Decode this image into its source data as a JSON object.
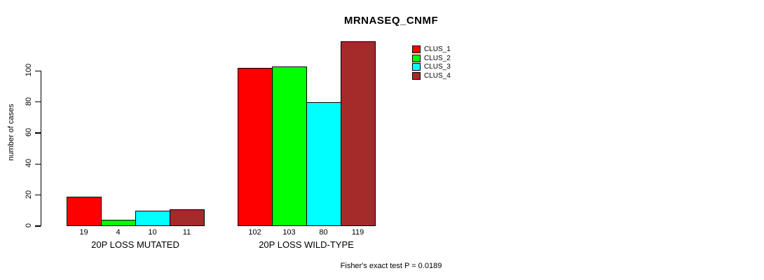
{
  "chart_data": {
    "type": "bar",
    "title": "MRNASEQ_CNMF",
    "ylabel": "number of cases",
    "xlabel": "",
    "yticks": [
      0,
      20,
      40,
      60,
      80,
      100
    ],
    "ylim": [
      0,
      120
    ],
    "grid": false,
    "legend_position": "top-right",
    "categories": [
      "20P LOSS MUTATED",
      "20P LOSS WILD-TYPE"
    ],
    "series": [
      {
        "name": "CLUS_1",
        "color": "#FF0000",
        "values": [
          19,
          102
        ]
      },
      {
        "name": "CLUS_2",
        "color": "#00FF00",
        "values": [
          4,
          103
        ]
      },
      {
        "name": "CLUS_3",
        "color": "#00FFFF",
        "values": [
          10,
          80
        ]
      },
      {
        "name": "CLUS_4",
        "color": "#A52A2A",
        "values": [
          11,
          119
        ]
      }
    ],
    "groups": [
      {
        "label": "20P LOSS MUTATED",
        "values": [
          19,
          4,
          10,
          11
        ]
      },
      {
        "label": "20P LOSS WILD-TYPE",
        "values": [
          102,
          103,
          80,
          119
        ]
      }
    ],
    "bar_value_labels": [
      [
        "19",
        "4",
        "10",
        "11"
      ],
      [
        "102",
        "103",
        "80",
        "119"
      ]
    ],
    "annotation": "Fisher's exact test P = 0.0189"
  },
  "colors": {
    "clus_1": "#FF0000",
    "clus_2": "#00FF00",
    "clus_3": "#00FFFF",
    "clus_4": "#A52A2A",
    "axis": "#000000",
    "background": "#FFFFFF"
  }
}
